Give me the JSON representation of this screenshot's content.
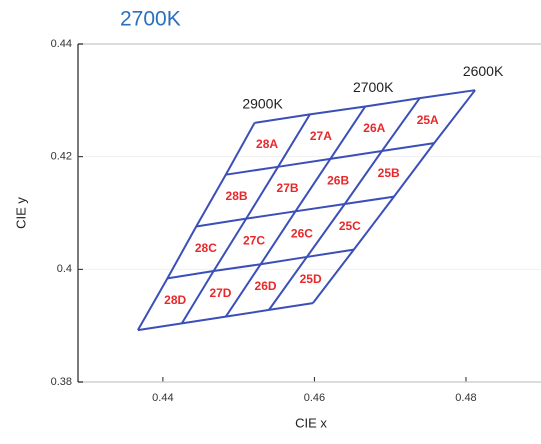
{
  "chart_data": {
    "type": "cie-grid",
    "title": "2700K",
    "x_label": "CIE x",
    "y_label": "CIE y",
    "xlim": [
      0.4288,
      0.4899
    ],
    "ylim": [
      0.38,
      0.44
    ],
    "xticks": [
      0.44,
      0.46,
      0.48
    ],
    "yticks": [
      0.38,
      0.4,
      0.42,
      0.44
    ],
    "grid": true,
    "line_color": "#3b4fb8",
    "cell_label_color": "#e8282b",
    "vertical_lines": [
      {
        "name": "2900K",
        "x": [
          0.4367,
          0.4406,
          0.4444,
          0.4483,
          0.4521
        ],
        "y": [
          0.3892,
          0.3984,
          0.4076,
          0.4168,
          0.426
        ]
      },
      {
        "x": [
          0.4425,
          0.4467,
          0.451,
          0.4552,
          0.4594
        ],
        "y": [
          0.3904,
          0.3997,
          0.409,
          0.4182,
          0.4275
        ]
      },
      {
        "name": "2700K",
        "x": [
          0.4483,
          0.4529,
          0.4575,
          0.4621,
          0.4667
        ],
        "y": [
          0.3916,
          0.4009,
          0.4103,
          0.4196,
          0.4289
        ]
      },
      {
        "x": [
          0.454,
          0.459,
          0.464,
          0.4689,
          0.4739
        ],
        "y": [
          0.3928,
          0.4022,
          0.4116,
          0.421,
          0.4304
        ]
      },
      {
        "name": "2600K",
        "x": [
          0.4598,
          0.4652,
          0.4705,
          0.4758,
          0.4812
        ],
        "y": [
          0.394,
          0.4035,
          0.4129,
          0.4224,
          0.4318
        ]
      }
    ],
    "cells": [
      [
        "28A",
        "27A",
        "26A",
        "25A"
      ],
      [
        "28B",
        "27B",
        "26B",
        "25B"
      ],
      [
        "28C",
        "27C",
        "26C",
        "25C"
      ],
      [
        "28D",
        "27D",
        "26D",
        "25D"
      ]
    ]
  }
}
